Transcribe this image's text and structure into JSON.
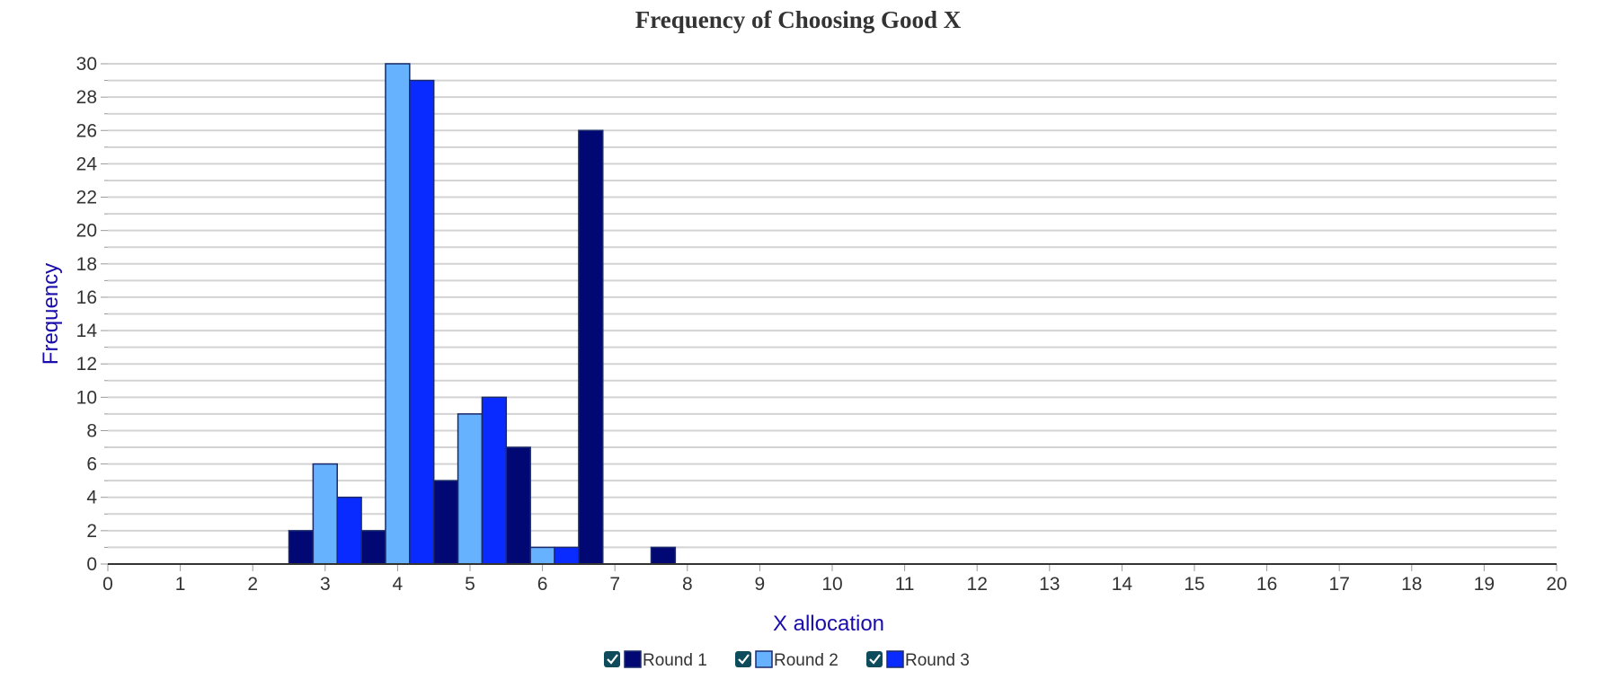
{
  "chart_data": {
    "type": "bar",
    "title": "Frequency of Choosing Good X",
    "xlabel": "X allocation",
    "ylabel": "Frequency",
    "xlim": [
      0,
      20
    ],
    "ylim": [
      0,
      30
    ],
    "x_ticks": [
      "0",
      "1",
      "2",
      "3",
      "4",
      "5",
      "6",
      "7",
      "8",
      "9",
      "10",
      "11",
      "12",
      "13",
      "14",
      "15",
      "16",
      "17",
      "18",
      "19",
      "20"
    ],
    "y_ticks": [
      "0",
      "2",
      "4",
      "6",
      "8",
      "10",
      "12",
      "14",
      "16",
      "18",
      "20",
      "22",
      "24",
      "26",
      "28",
      "30"
    ],
    "grid": true,
    "legend_position": "bottom",
    "categories": [
      3,
      4,
      5,
      6,
      7,
      8
    ],
    "series": [
      {
        "name": "Round 1",
        "color": "#020873",
        "values": [
          2,
          2,
          5,
          7,
          26,
          1
        ]
      },
      {
        "name": "Round 2",
        "color": "#66b2ff",
        "values": [
          6,
          30,
          9,
          1,
          0,
          0
        ]
      },
      {
        "name": "Round 3",
        "color": "#0a2bff",
        "values": [
          4,
          29,
          10,
          1,
          0,
          0
        ]
      }
    ],
    "axis_label_color": "#1a0dab",
    "legend_checkbox_color": "#0e4c5c"
  }
}
